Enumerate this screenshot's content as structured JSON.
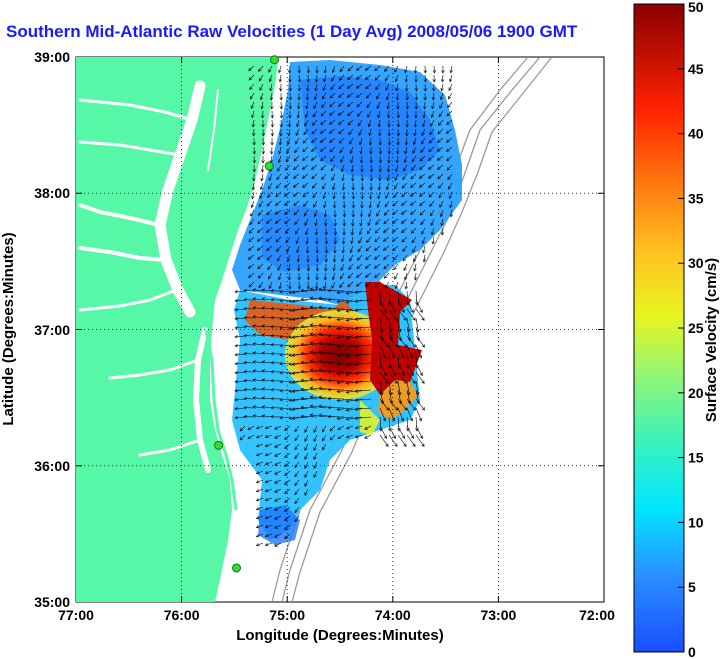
{
  "title": "Southern Mid-Atlantic Raw Velocities (1 Day Avg) 2008/05/06 1900 GMT",
  "xlabel": "Longitude (Degrees:Minutes)",
  "ylabel": "Latitude (Degrees:Minutes)",
  "colorbar": {
    "label": "Surface Velocity (cm/s)",
    "ticks": [
      "0",
      "5",
      "10",
      "15",
      "20",
      "25",
      "30",
      "35",
      "40",
      "45",
      "50"
    ],
    "range": [
      0,
      50
    ],
    "colormap": "jet"
  },
  "axes": {
    "x_ticks": [
      "77:00",
      "76:00",
      "75:00",
      "74:00",
      "73:00",
      "72:00"
    ],
    "y_ticks": [
      "35:00",
      "36:00",
      "37:00",
      "38:00",
      "39:00"
    ],
    "x_range": [
      -77,
      -72
    ],
    "y_range": [
      35,
      39
    ],
    "grid": "dotted"
  },
  "colors": {
    "land": "#57f7a8",
    "water": "#ffffff",
    "title": "#1a1aff",
    "bathymetry": "#9a9a9a",
    "station_marker": "#33dd33"
  },
  "stations": [
    {
      "lon": -75.12,
      "lat": 38.98
    },
    {
      "lon": -75.17,
      "lat": 38.2
    },
    {
      "lon": -75.65,
      "lat": 36.15
    },
    {
      "lon": -75.48,
      "lat": 35.25
    }
  ]
}
